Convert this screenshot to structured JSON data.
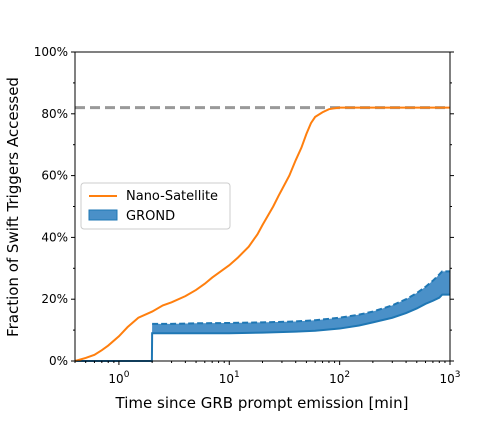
{
  "chart_data": {
    "type": "line",
    "title": "",
    "xlabel": "Time since GRB prompt emission [min]",
    "ylabel": "Fraction of Swift Triggers Accessed",
    "x_scale": "log",
    "xlim": [
      0.4,
      1000
    ],
    "ylim": [
      0,
      1
    ],
    "x_ticks": [
      {
        "value": 1,
        "base": "10",
        "exp": "0"
      },
      {
        "value": 10,
        "base": "10",
        "exp": "1"
      },
      {
        "value": 100,
        "base": "10",
        "exp": "2"
      },
      {
        "value": 1000,
        "base": "10",
        "exp": "3"
      }
    ],
    "y_ticks": [
      {
        "value": 0,
        "label": "0%"
      },
      {
        "value": 0.2,
        "label": "20%"
      },
      {
        "value": 0.4,
        "label": "40%"
      },
      {
        "value": 0.6,
        "label": "60%"
      },
      {
        "value": 0.8,
        "label": "80%"
      },
      {
        "value": 1.0,
        "label": "100%"
      }
    ],
    "grid": false,
    "legend_position": "center-left",
    "reference_line": {
      "y": 0.82,
      "color": "#999999",
      "style": "dashed"
    },
    "series": [
      {
        "name": "Nano-Satellite",
        "kind": "line",
        "color": "#ff7f0e",
        "x": [
          0.4,
          0.5,
          0.6,
          0.7,
          0.8,
          1.0,
          1.2,
          1.5,
          2.0,
          2.5,
          3.0,
          4.0,
          5.0,
          6.0,
          7.0,
          8.0,
          10,
          12,
          15,
          18,
          20,
          25,
          28,
          30,
          35,
          40,
          45,
          50,
          55,
          60,
          70,
          80,
          90,
          100,
          150,
          200,
          300,
          500,
          700,
          1000
        ],
        "y": [
          0.0,
          0.01,
          0.02,
          0.035,
          0.05,
          0.08,
          0.11,
          0.14,
          0.16,
          0.18,
          0.19,
          0.21,
          0.23,
          0.25,
          0.27,
          0.285,
          0.31,
          0.335,
          0.37,
          0.41,
          0.44,
          0.5,
          0.535,
          0.555,
          0.6,
          0.65,
          0.69,
          0.735,
          0.77,
          0.79,
          0.805,
          0.815,
          0.818,
          0.82,
          0.82,
          0.82,
          0.82,
          0.82,
          0.82,
          0.82
        ]
      },
      {
        "name": "GROND",
        "kind": "band",
        "color": "#1f77b4",
        "fill_color": "#4a90c8",
        "x": [
          0.4,
          1.99,
          2.0,
          3.0,
          5.0,
          10,
          20,
          40,
          60,
          100,
          150,
          200,
          300,
          400,
          500,
          600,
          700,
          800,
          850,
          1000
        ],
        "y_low": [
          0.0,
          0.0,
          0.09,
          0.09,
          0.09,
          0.09,
          0.092,
          0.095,
          0.098,
          0.105,
          0.115,
          0.125,
          0.14,
          0.155,
          0.17,
          0.185,
          0.195,
          0.205,
          0.215,
          0.215
        ],
        "y_high": [
          0.0,
          0.0,
          0.12,
          0.12,
          0.122,
          0.123,
          0.125,
          0.128,
          0.132,
          0.14,
          0.15,
          0.16,
          0.18,
          0.2,
          0.22,
          0.24,
          0.26,
          0.28,
          0.29,
          0.29
        ]
      }
    ]
  }
}
